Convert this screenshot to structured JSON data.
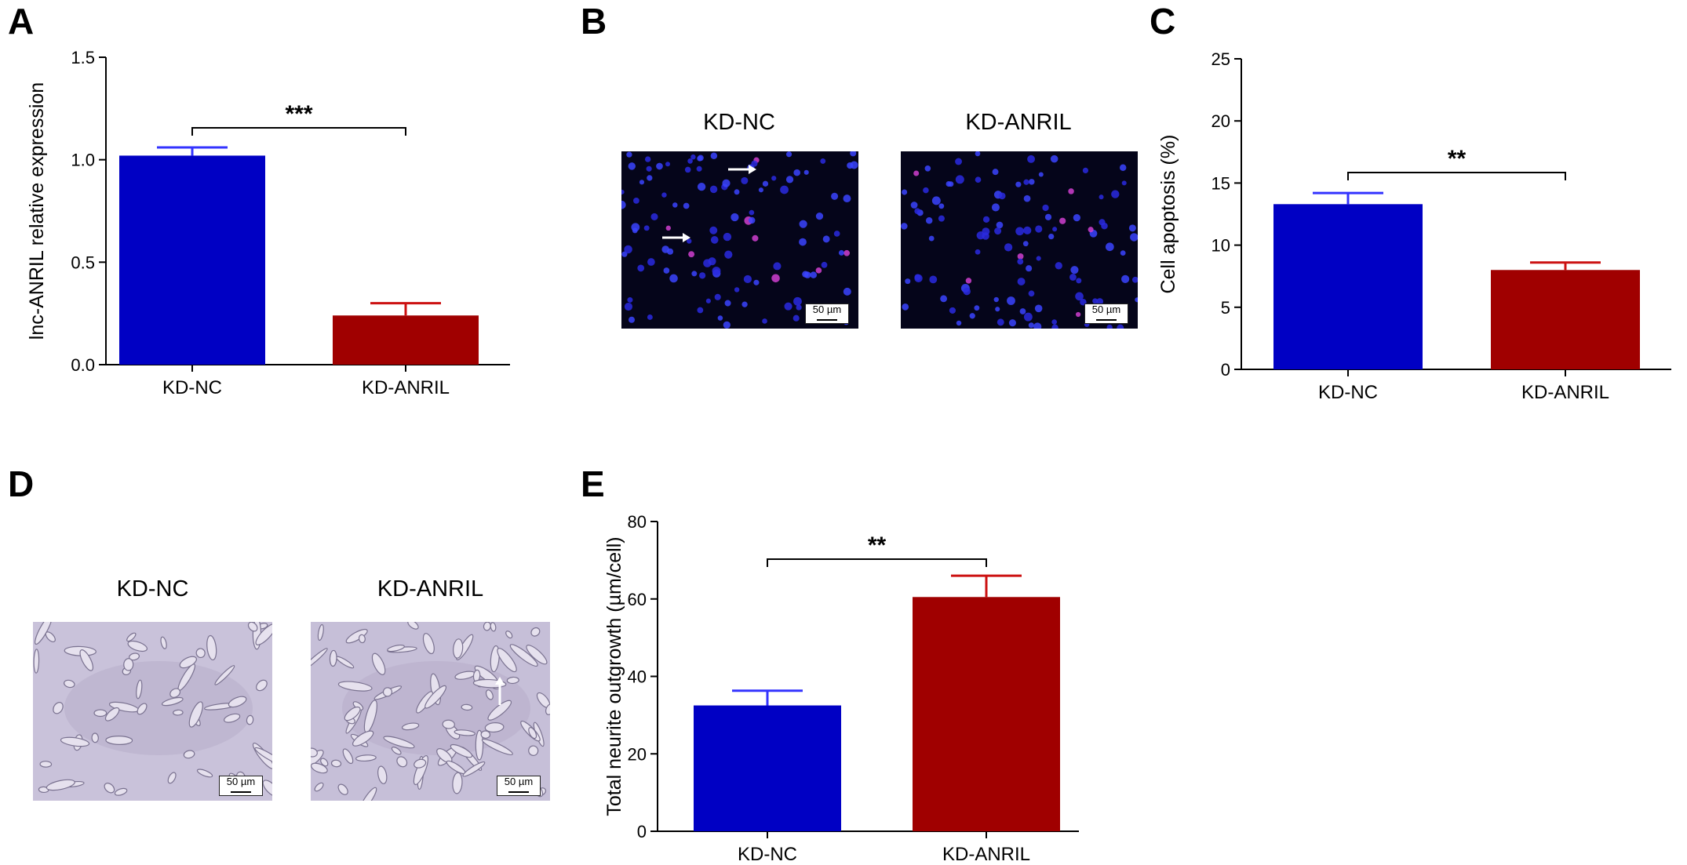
{
  "panels": {
    "A": "A",
    "B": "B",
    "C": "C",
    "D": "D",
    "E": "E"
  },
  "colors": {
    "kd_nc": "#0000c4",
    "kd_anril": "#a00000",
    "error_nc": "#3333ff",
    "error_anril": "#cc1111"
  },
  "panel_b": {
    "titles": [
      "KD-NC",
      "KD-ANRIL"
    ],
    "scale": "50 µm"
  },
  "panel_d": {
    "titles": [
      "KD-NC",
      "KD-ANRIL"
    ],
    "scale": "50 µm"
  },
  "chart_data": [
    {
      "panel": "A",
      "type": "bar",
      "categories": [
        "KD-NC",
        "KD-ANRIL"
      ],
      "values": [
        1.02,
        0.24
      ],
      "errors": [
        0.04,
        0.06
      ],
      "ylabel": "lnc-ANRIL relative expression",
      "xlabel": "",
      "ylim": [
        0,
        1.5
      ],
      "yticks": [
        "0.0",
        "0.5",
        "1.0",
        "1.5"
      ],
      "significance": "***"
    },
    {
      "panel": "C",
      "type": "bar",
      "categories": [
        "KD-NC",
        "KD-ANRIL"
      ],
      "values": [
        13.3,
        8.0
      ],
      "errors": [
        0.9,
        0.6
      ],
      "ylabel": "Cell apoptosis (%)",
      "xlabel": "",
      "ylim": [
        0,
        25
      ],
      "yticks": [
        "0",
        "5",
        "10",
        "15",
        "20",
        "25"
      ],
      "significance": "**"
    },
    {
      "panel": "E",
      "type": "bar",
      "categories": [
        "KD-NC",
        "KD-ANRIL"
      ],
      "values": [
        32.5,
        60.5
      ],
      "errors": [
        3.8,
        5.5
      ],
      "ylabel": "Total neurite outgrowth (µm/cell)",
      "xlabel": "",
      "ylim": [
        0,
        80
      ],
      "yticks": [
        "0",
        "20",
        "40",
        "60",
        "80"
      ],
      "significance": "**"
    }
  ]
}
